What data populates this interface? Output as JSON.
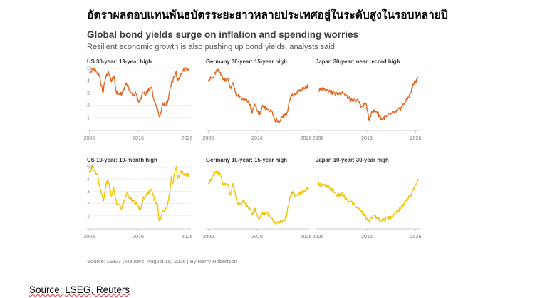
{
  "page": {
    "thai_title": "อัตราผลตอบแทนพันธบัตรระยะยาวหลายประเทศอยู่ในระดับสูงในรอบหลายปี",
    "source_label": "Source:",
    "source_value": "LSEG, Reuters"
  },
  "graphic": {
    "title": "Global bond yields surge on inflation and spending worries",
    "subtitle": "Resilient economic growth is also pushing up bond yields, analysts said",
    "credit": "Source: LSEG | Reuters, August 18, 2026 | By Harry Robertson"
  },
  "chart_data": [
    {
      "type": "line",
      "title": "US 30-year: 19-year high",
      "color": "#e2631b",
      "ylim": [
        0,
        5
      ],
      "y_ticks": [
        "1",
        "2",
        "3",
        "4",
        "5%"
      ],
      "xlim": [
        2005.5,
        2026.8
      ],
      "x_ticks": [
        "2006",
        "2016",
        "2026"
      ],
      "x": [
        2006,
        2007,
        2007.5,
        2008,
        2008.8,
        2009,
        2009.5,
        2010,
        2010.5,
        2011,
        2011.5,
        2012,
        2012.5,
        2013,
        2013.5,
        2014,
        2014.5,
        2015,
        2015.5,
        2016,
        2016.5,
        2017,
        2017.5,
        2018,
        2018.8,
        2019,
        2019.5,
        2020,
        2020.3,
        2020.6,
        2021,
        2021.5,
        2022,
        2022.5,
        2022.8,
        2023,
        2023.8,
        2024,
        2024.5,
        2025,
        2025.5,
        2026,
        2026.5
      ],
      "values": [
        4.6,
        5.0,
        4.7,
        4.4,
        3.0,
        3.7,
        4.5,
        4.6,
        3.9,
        4.4,
        3.1,
        2.9,
        2.9,
        3.2,
        3.8,
        3.5,
        3.0,
        2.8,
        3.0,
        2.3,
        2.5,
        3.0,
        2.8,
        3.2,
        3.4,
        2.8,
        2.2,
        1.7,
        1.1,
        1.4,
        2.2,
        2.0,
        2.2,
        3.3,
        3.8,
        3.9,
        4.8,
        4.0,
        4.3,
        4.7,
        5.0,
        4.8,
        5.0
      ]
    },
    {
      "type": "line",
      "title": "Germany 30-year: 15-year high",
      "color": "#e2631b",
      "ylim": [
        -1,
        5
      ],
      "xlim": [
        2005.5,
        2026.8
      ],
      "x_ticks": [
        "2006",
        "2016",
        "2026"
      ],
      "x": [
        2006,
        2007,
        2007.7,
        2008.5,
        2009,
        2010,
        2010.5,
        2011,
        2011.8,
        2012,
        2013,
        2014,
        2014.5,
        2015,
        2015.5,
        2016,
        2016.5,
        2017,
        2018,
        2019,
        2019.7,
        2020,
        2020.5,
        2021,
        2021.5,
        2022,
        2022.8,
        2023,
        2023.5,
        2024,
        2025,
        2025.5,
        2026,
        2026.5
      ],
      "values": [
        3.9,
        4.1,
        4.8,
        4.6,
        3.9,
        4.0,
        3.1,
        3.5,
        2.3,
        2.3,
        2.0,
        1.8,
        1.5,
        0.6,
        1.5,
        0.9,
        0.5,
        1.2,
        1.1,
        0.8,
        -0.2,
        0.1,
        -0.3,
        0.2,
        0.5,
        0.4,
        2.1,
        2.3,
        2.4,
        2.6,
        2.9,
        3.0,
        3.2,
        3.3
      ]
    },
    {
      "type": "line",
      "title": "Japan 30-year: near record high",
      "color": "#e2631b",
      "ylim": [
        -0.5,
        4
      ],
      "xlim": [
        2005.5,
        2026.8
      ],
      "x_ticks": [
        "2006",
        "2016",
        "2026"
      ],
      "x": [
        2006,
        2007,
        2008,
        2008.5,
        2009,
        2010,
        2011,
        2012,
        2013,
        2014,
        2015,
        2015.8,
        2016.5,
        2017,
        2018,
        2019,
        2020,
        2021,
        2022,
        2023,
        2024,
        2025,
        2025.5,
        2026,
        2026.5
      ],
      "values": [
        2.35,
        2.5,
        2.45,
        2.3,
        2.2,
        2.1,
        2.3,
        1.9,
        1.6,
        1.7,
        1.2,
        1.45,
        0.15,
        0.85,
        0.85,
        0.3,
        0.45,
        0.7,
        0.8,
        1.1,
        1.6,
        2.2,
        2.9,
        3.1,
        3.3
      ]
    },
    {
      "type": "line",
      "title": "US 10-year: 19-month high",
      "color": "#f2c300",
      "ylim": [
        0,
        5
      ],
      "y_ticks": [
        "1",
        "2",
        "3",
        "4",
        "5%"
      ],
      "xlim": [
        2005.5,
        2026.8
      ],
      "x_ticks": [
        "2006",
        "2016",
        "2026"
      ],
      "x": [
        2006,
        2006.5,
        2007,
        2007.7,
        2008,
        2008.9,
        2009.5,
        2010,
        2010.5,
        2011,
        2011.6,
        2012,
        2012.5,
        2013,
        2013.7,
        2014,
        2015,
        2016,
        2016.5,
        2017,
        2018,
        2018.8,
        2019,
        2020,
        2020.3,
        2020.6,
        2021,
        2021.5,
        2022,
        2022.5,
        2022.8,
        2023,
        2023.8,
        2024,
        2024.5,
        2025,
        2025.5,
        2026,
        2026.5
      ],
      "values": [
        4.5,
        5.0,
        4.7,
        4.4,
        3.5,
        2.2,
        3.8,
        3.7,
        2.6,
        3.3,
        2.0,
        1.9,
        1.6,
        2.0,
        2.9,
        2.6,
        2.2,
        1.8,
        1.5,
        2.4,
        2.8,
        3.2,
        2.7,
        1.8,
        0.6,
        0.7,
        1.5,
        1.4,
        1.8,
        3.0,
        4.2,
        3.6,
        5.0,
        4.0,
        4.4,
        4.6,
        4.3,
        4.4,
        4.3
      ]
    },
    {
      "type": "line",
      "title": "Germany 10-year: 15-year high",
      "color": "#f2c300",
      "ylim": [
        -1,
        5
      ],
      "xlim": [
        2005.5,
        2026.8
      ],
      "x_ticks": [
        "2006",
        "2016",
        "2026"
      ],
      "x": [
        2006,
        2007,
        2007.7,
        2008.5,
        2009,
        2010,
        2010.5,
        2011,
        2011.8,
        2012,
        2013,
        2014,
        2015,
        2015.5,
        2016,
        2016.5,
        2017,
        2018,
        2019,
        2019.7,
        2020,
        2021,
        2021.5,
        2022,
        2022.8,
        2023,
        2024,
        2025,
        2025.5,
        2026,
        2026.5
      ],
      "values": [
        3.4,
        4.1,
        4.6,
        4.2,
        3.2,
        3.3,
        2.2,
        3.4,
        1.7,
        1.4,
        1.6,
        1.2,
        0.3,
        0.9,
        0.3,
        -0.1,
        0.4,
        0.5,
        0.0,
        -0.6,
        -0.4,
        -0.4,
        -0.2,
        0.1,
        2.2,
        2.5,
        2.2,
        2.4,
        2.6,
        2.7,
        2.9
      ]
    },
    {
      "type": "line",
      "title": "Japan 10-year: 30-year high",
      "color": "#f2c300",
      "ylim": [
        -0.5,
        2.5
      ],
      "xlim": [
        2005.5,
        2026.8
      ],
      "x_ticks": [
        "2006",
        "2016",
        "2026"
      ],
      "x": [
        2006,
        2007,
        2008,
        2009,
        2010,
        2011,
        2012,
        2013,
        2014,
        2015,
        2016,
        2016.5,
        2017,
        2018,
        2019,
        2020,
        2021,
        2022,
        2023,
        2024,
        2025,
        2025.5,
        2026,
        2026.5
      ],
      "values": [
        1.7,
        1.6,
        1.5,
        1.35,
        1.1,
        1.15,
        0.85,
        0.75,
        0.5,
        0.35,
        -0.1,
        -0.2,
        0.05,
        0.05,
        -0.15,
        0.0,
        0.05,
        0.25,
        0.5,
        0.85,
        1.1,
        1.35,
        1.6,
        1.9
      ]
    }
  ]
}
